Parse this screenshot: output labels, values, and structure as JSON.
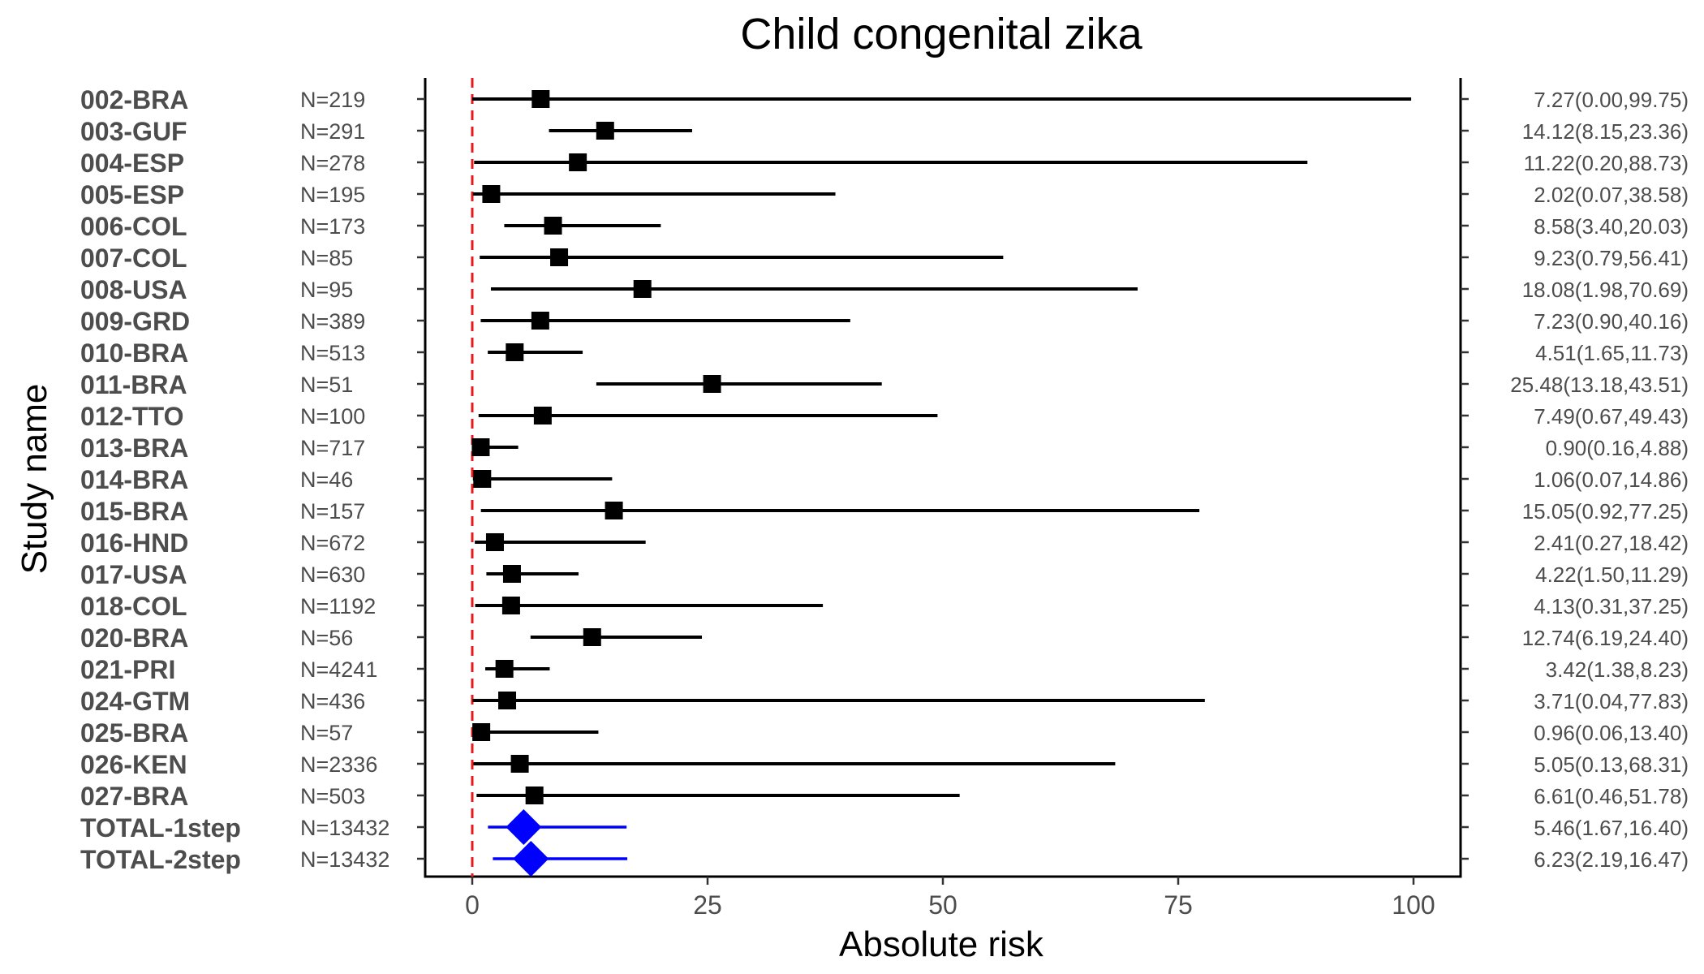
{
  "chart_data": {
    "type": "forest",
    "title": "Child congenital zika",
    "xlabel": "Absolute risk",
    "ylabel": "Study name",
    "xlim": [
      -5,
      105
    ],
    "xticks": [
      0,
      25,
      50,
      75,
      100
    ],
    "reference_line": 0,
    "colors": {
      "study": "#000000",
      "total": "#0000ff",
      "reference": "#e41a1c"
    },
    "rows": [
      {
        "study": "002-BRA",
        "n": "N=219",
        "est": 7.27,
        "lo": 0.0,
        "hi": 99.75,
        "label": "7.27(0.00,99.75)",
        "kind": "study"
      },
      {
        "study": "003-GUF",
        "n": "N=291",
        "est": 14.12,
        "lo": 8.15,
        "hi": 23.36,
        "label": "14.12(8.15,23.36)",
        "kind": "study"
      },
      {
        "study": "004-ESP",
        "n": "N=278",
        "est": 11.22,
        "lo": 0.2,
        "hi": 88.73,
        "label": "11.22(0.20,88.73)",
        "kind": "study"
      },
      {
        "study": "005-ESP",
        "n": "N=195",
        "est": 2.02,
        "lo": 0.07,
        "hi": 38.58,
        "label": "2.02(0.07,38.58)",
        "kind": "study"
      },
      {
        "study": "006-COL",
        "n": "N=173",
        "est": 8.58,
        "lo": 3.4,
        "hi": 20.03,
        "label": "8.58(3.40,20.03)",
        "kind": "study"
      },
      {
        "study": "007-COL",
        "n": "N=85",
        "est": 9.23,
        "lo": 0.79,
        "hi": 56.41,
        "label": "9.23(0.79,56.41)",
        "kind": "study"
      },
      {
        "study": "008-USA",
        "n": "N=95",
        "est": 18.08,
        "lo": 1.98,
        "hi": 70.69,
        "label": "18.08(1.98,70.69)",
        "kind": "study"
      },
      {
        "study": "009-GRD",
        "n": "N=389",
        "est": 7.23,
        "lo": 0.9,
        "hi": 40.16,
        "label": "7.23(0.90,40.16)",
        "kind": "study"
      },
      {
        "study": "010-BRA",
        "n": "N=513",
        "est": 4.51,
        "lo": 1.65,
        "hi": 11.73,
        "label": "4.51(1.65,11.73)",
        "kind": "study"
      },
      {
        "study": "011-BRA",
        "n": "N=51",
        "est": 25.48,
        "lo": 13.18,
        "hi": 43.51,
        "label": "25.48(13.18,43.51)",
        "kind": "study"
      },
      {
        "study": "012-TTO",
        "n": "N=100",
        "est": 7.49,
        "lo": 0.67,
        "hi": 49.43,
        "label": "7.49(0.67,49.43)",
        "kind": "study"
      },
      {
        "study": "013-BRA",
        "n": "N=717",
        "est": 0.9,
        "lo": 0.16,
        "hi": 4.88,
        "label": "0.90(0.16,4.88)",
        "kind": "study"
      },
      {
        "study": "014-BRA",
        "n": "N=46",
        "est": 1.06,
        "lo": 0.07,
        "hi": 14.86,
        "label": "1.06(0.07,14.86)",
        "kind": "study"
      },
      {
        "study": "015-BRA",
        "n": "N=157",
        "est": 15.05,
        "lo": 0.92,
        "hi": 77.25,
        "label": "15.05(0.92,77.25)",
        "kind": "study"
      },
      {
        "study": "016-HND",
        "n": "N=672",
        "est": 2.41,
        "lo": 0.27,
        "hi": 18.42,
        "label": "2.41(0.27,18.42)",
        "kind": "study"
      },
      {
        "study": "017-USA",
        "n": "N=630",
        "est": 4.22,
        "lo": 1.5,
        "hi": 11.29,
        "label": "4.22(1.50,11.29)",
        "kind": "study"
      },
      {
        "study": "018-COL",
        "n": "N=1192",
        "est": 4.13,
        "lo": 0.31,
        "hi": 37.25,
        "label": "4.13(0.31,37.25)",
        "kind": "study"
      },
      {
        "study": "020-BRA",
        "n": "N=56",
        "est": 12.74,
        "lo": 6.19,
        "hi": 24.4,
        "label": "12.74(6.19,24.40)",
        "kind": "study"
      },
      {
        "study": "021-PRI",
        "n": "N=4241",
        "est": 3.42,
        "lo": 1.38,
        "hi": 8.23,
        "label": "3.42(1.38,8.23)",
        "kind": "study"
      },
      {
        "study": "024-GTM",
        "n": "N=436",
        "est": 3.71,
        "lo": 0.04,
        "hi": 77.83,
        "label": "3.71(0.04,77.83)",
        "kind": "study"
      },
      {
        "study": "025-BRA",
        "n": "N=57",
        "est": 0.96,
        "lo": 0.06,
        "hi": 13.4,
        "label": "0.96(0.06,13.40)",
        "kind": "study"
      },
      {
        "study": "026-KEN",
        "n": "N=2336",
        "est": 5.05,
        "lo": 0.13,
        "hi": 68.31,
        "label": "5.05(0.13,68.31)",
        "kind": "study"
      },
      {
        "study": "027-BRA",
        "n": "N=503",
        "est": 6.61,
        "lo": 0.46,
        "hi": 51.78,
        "label": "6.61(0.46,51.78)",
        "kind": "study"
      },
      {
        "study": "TOTAL-1step",
        "n": "N=13432",
        "est": 5.46,
        "lo": 1.67,
        "hi": 16.4,
        "label": "5.46(1.67,16.40)",
        "kind": "total"
      },
      {
        "study": "TOTAL-2step",
        "n": "N=13432",
        "est": 6.23,
        "lo": 2.19,
        "hi": 16.47,
        "label": "6.23(2.19,16.47)",
        "kind": "total"
      }
    ]
  }
}
